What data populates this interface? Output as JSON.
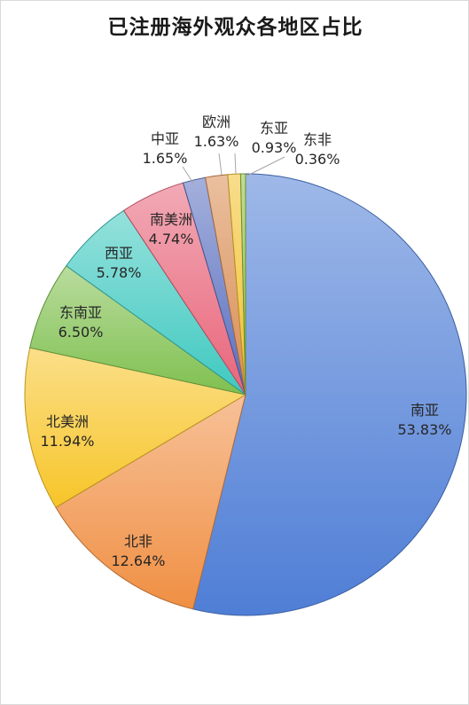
{
  "chart_data": {
    "type": "pie",
    "title": "已注册海外观众各地区占比",
    "start_angle_deg": 0,
    "direction": "clockwise",
    "legend": "none",
    "slices": [
      {
        "name": "南亚",
        "value": 53.83,
        "label_value": "53.83%",
        "color": "#4f7ed6"
      },
      {
        "name": "北非",
        "value": 12.64,
        "label_value": "12.64%",
        "color": "#f08f43"
      },
      {
        "name": "北美洲",
        "value": 11.94,
        "label_value": "11.94%",
        "color": "#f7c529"
      },
      {
        "name": "东南亚",
        "value": 6.5,
        "label_value": "6.50%",
        "color": "#7fc04f"
      },
      {
        "name": "西亚",
        "value": 5.78,
        "label_value": "5.78%",
        "color": "#3fc9c0"
      },
      {
        "name": "南美洲",
        "value": 4.74,
        "label_value": "4.74%",
        "color": "#e8657a"
      },
      {
        "name": "中亚",
        "value": 1.65,
        "label_value": "1.65%",
        "color": "#5a6fbf"
      },
      {
        "name": "欧洲",
        "value": 1.63,
        "label_value": "1.63%",
        "color": "#d98c52"
      },
      {
        "name": "东亚",
        "value": 0.93,
        "label_value": "0.93%",
        "color": "#f2c230"
      },
      {
        "name": "东非",
        "value": 0.36,
        "label_value": "0.36%",
        "color": "#8cbf3f"
      }
    ]
  }
}
